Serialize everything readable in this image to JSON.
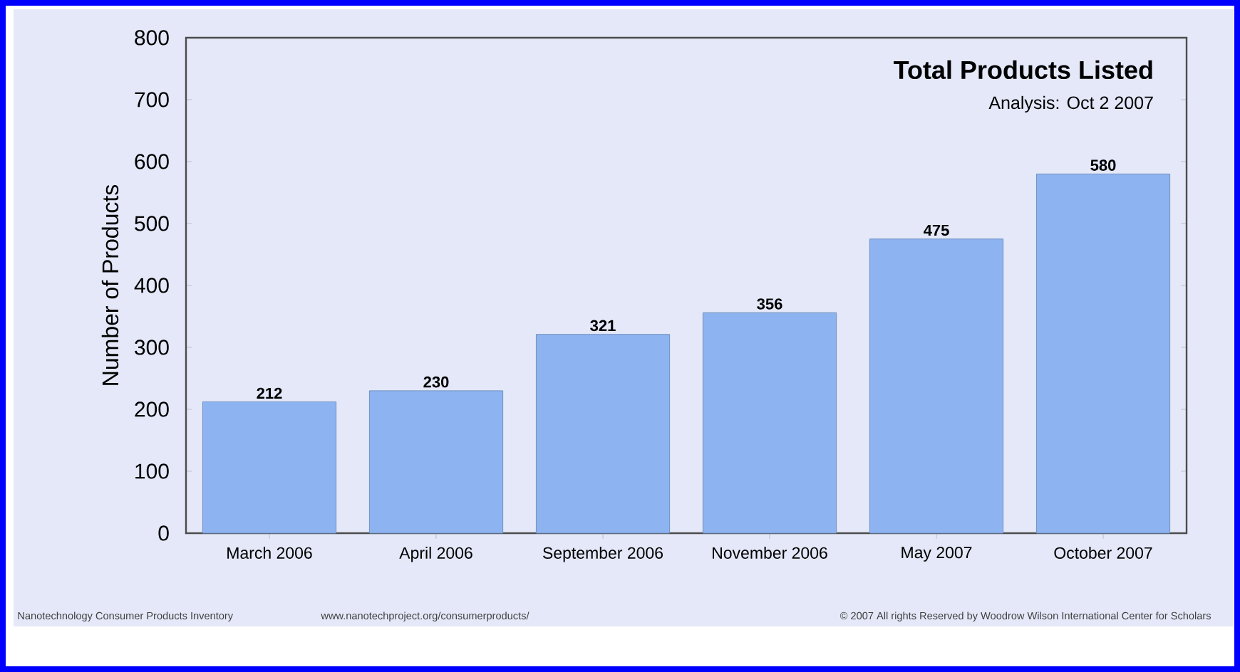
{
  "chart_data": {
    "type": "bar",
    "title": "Total Products Listed",
    "subtitle": "Analysis: Oct 2 2007",
    "ylabel": "Number of Products",
    "categories": [
      "March 2006",
      "April 2006",
      "September 2006",
      "November 2006",
      "May 2007",
      "October 2007"
    ],
    "values": [
      212,
      230,
      321,
      356,
      475,
      580
    ],
    "color": "#8db4f0",
    "data_labels": true,
    "ylim": [
      0,
      800
    ],
    "yticks": [
      0,
      100,
      200,
      300,
      400,
      500,
      600,
      700,
      800
    ],
    "grid": false,
    "annotations": [
      "Nanotechnology Consumer Products Inventory",
      "www.nanotechproject.org/consumerproducts/",
      "© 2007 All rights Reserved by Woodrow Wilson International Center for Scholars"
    ]
  }
}
